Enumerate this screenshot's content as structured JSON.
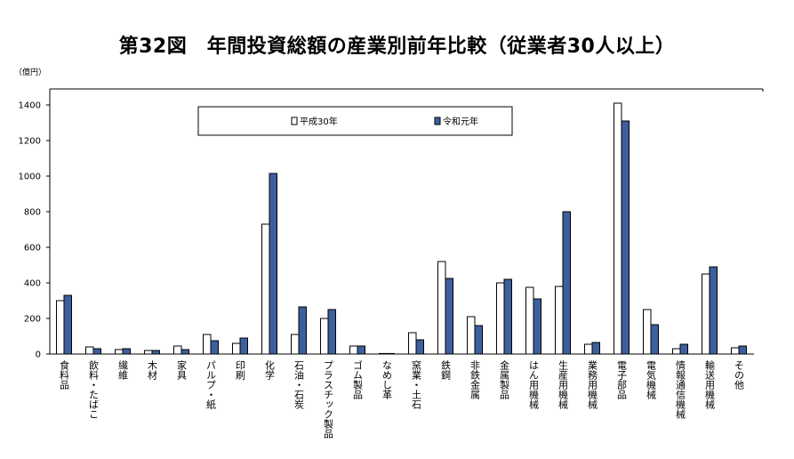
{
  "chart_data": {
    "type": "bar",
    "title": "第32図　年間投資総額の産業別前年比較（従業者30人以上）",
    "ylabel": "（億円）",
    "xlabel": "",
    "ylim": [
      0,
      1400
    ],
    "yticks": [
      0,
      200,
      400,
      600,
      800,
      1000,
      1200,
      1400
    ],
    "grid": false,
    "legend_position": "top-center",
    "categories": [
      "食料品",
      "飲料・たばこ",
      "繊維",
      "木材",
      "家具",
      "パルプ・紙",
      "印刷",
      "化学",
      "石油・石炭",
      "プラスチック製品",
      "ゴム製品",
      "なめし革",
      "窯業・土石",
      "鉄鋼",
      "非鉄金属",
      "金属製品",
      "はん用機械",
      "生産用機械",
      "業務用機械",
      "電子部品",
      "電気機械",
      "情報通信機械",
      "輸送用機械",
      "その他"
    ],
    "series": [
      {
        "name": "平成30年",
        "color": "#ffffff",
        "values": [
          300,
          40,
          25,
          20,
          45,
          110,
          60,
          730,
          110,
          200,
          45,
          3,
          120,
          520,
          210,
          400,
          375,
          380,
          55,
          1410,
          250,
          30,
          450,
          35
        ]
      },
      {
        "name": "令和元年",
        "color": "#3d5f9e",
        "values": [
          330,
          30,
          30,
          20,
          25,
          75,
          90,
          1015,
          265,
          250,
          45,
          3,
          80,
          425,
          160,
          420,
          310,
          800,
          65,
          1310,
          165,
          55,
          490,
          45
        ]
      }
    ]
  }
}
